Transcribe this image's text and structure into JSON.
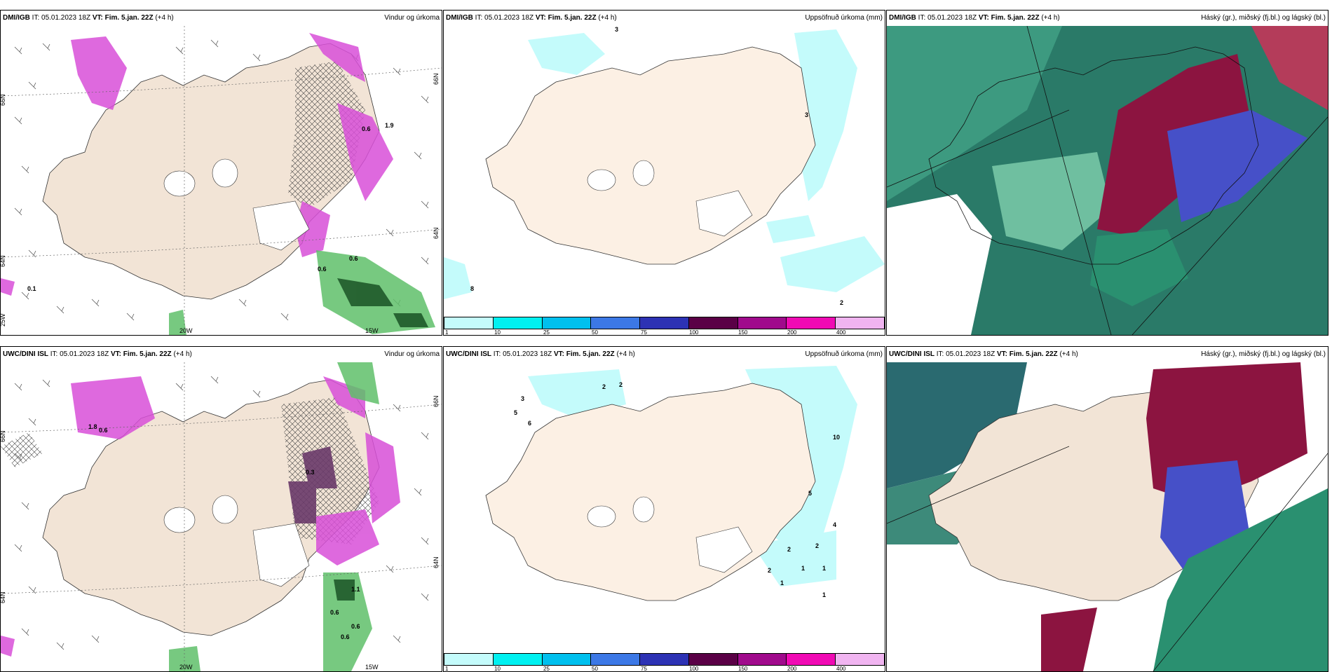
{
  "panels": [
    {
      "model": "DMI/IGB",
      "init": "IT: 05.01.2023 18Z",
      "valid_label": "VT: Fim. 5.jan. 22Z",
      "lead": "(+4 h)",
      "title": "Vindur og úrkoma",
      "type": "wind"
    },
    {
      "model": "DMI/IGB",
      "init": "IT: 05.01.2023 18Z",
      "valid_label": "VT: Fim. 5.jan. 22Z",
      "lead": "(+4 h)",
      "title": "Uppsöfnuð úrkoma (mm)",
      "type": "accum"
    },
    {
      "model": "DMI/IGB",
      "init": "IT: 05.01.2023 18Z",
      "valid_label": "VT: Fim. 5.jan. 22Z",
      "lead": "(+4 h)",
      "title": "Háský (gr.), miðský (fj.bl.) og lágský (bl.)",
      "type": "cloud"
    },
    {
      "model": "UWC/DINI ISL",
      "init": "IT: 05.01.2023 18Z",
      "valid_label": "VT: Fim. 5.jan. 22Z",
      "lead": "(+4 h)",
      "title": "Vindur og úrkoma",
      "type": "wind"
    },
    {
      "model": "UWC/DINI ISL",
      "init": "IT: 05.01.2023 18Z",
      "valid_label": "VT: Fim. 5.jan. 22Z",
      "lead": "(+4 h)",
      "title": "Uppsöfnuð úrkoma (mm)",
      "type": "accum"
    },
    {
      "model": "UWC/DINI ISL",
      "init": "IT: 05.01.2023 18Z",
      "valid_label": "VT: Fim. 5.jan. 22Z",
      "lead": "(+4 h)",
      "title": "Háský (gr.), miðský (fj.bl.) og lágský (bl.)",
      "type": "cloud"
    }
  ],
  "grid_labels": {
    "lat66": "66N",
    "lat64": "64N",
    "lon25": "25W",
    "lon20": "20W",
    "lon15": "15W"
  },
  "wind_values_top": [
    "0.6",
    "0.6",
    "1.9",
    "0.6",
    "0.1"
  ],
  "wind_values_bottom": [
    "1.8",
    "0.6",
    "0.3",
    "1.1",
    "0.6",
    "0.6",
    "0.6"
  ],
  "accum_values_top": [
    "3",
    "3",
    "8",
    "2"
  ],
  "accum_values_bottom": [
    "2",
    "2",
    "3",
    "5",
    "6",
    "10",
    "5",
    "4",
    "2",
    "2",
    "1",
    "1",
    "1",
    "1",
    "2"
  ],
  "colorbar": {
    "ticks": [
      "1",
      "10",
      "25",
      "50",
      "75",
      "100",
      "150",
      "200",
      "400"
    ],
    "colors": [
      "#c4fbfb",
      "#00f0f0",
      "#00c0ee",
      "#3c78e6",
      "#2d32b4",
      "#5a0046",
      "#a00a8c",
      "#f00ab4",
      "#f0b4f0"
    ]
  },
  "colors": {
    "land": "#f2e4d6",
    "land_light": "#fcf0e4",
    "precip_pink": "#d84fd8",
    "precip_green": "#5fbf6a",
    "cloud_high": "#8c1440",
    "cloud_mid": "#4650c8",
    "cloud_low": "#2a9070"
  }
}
